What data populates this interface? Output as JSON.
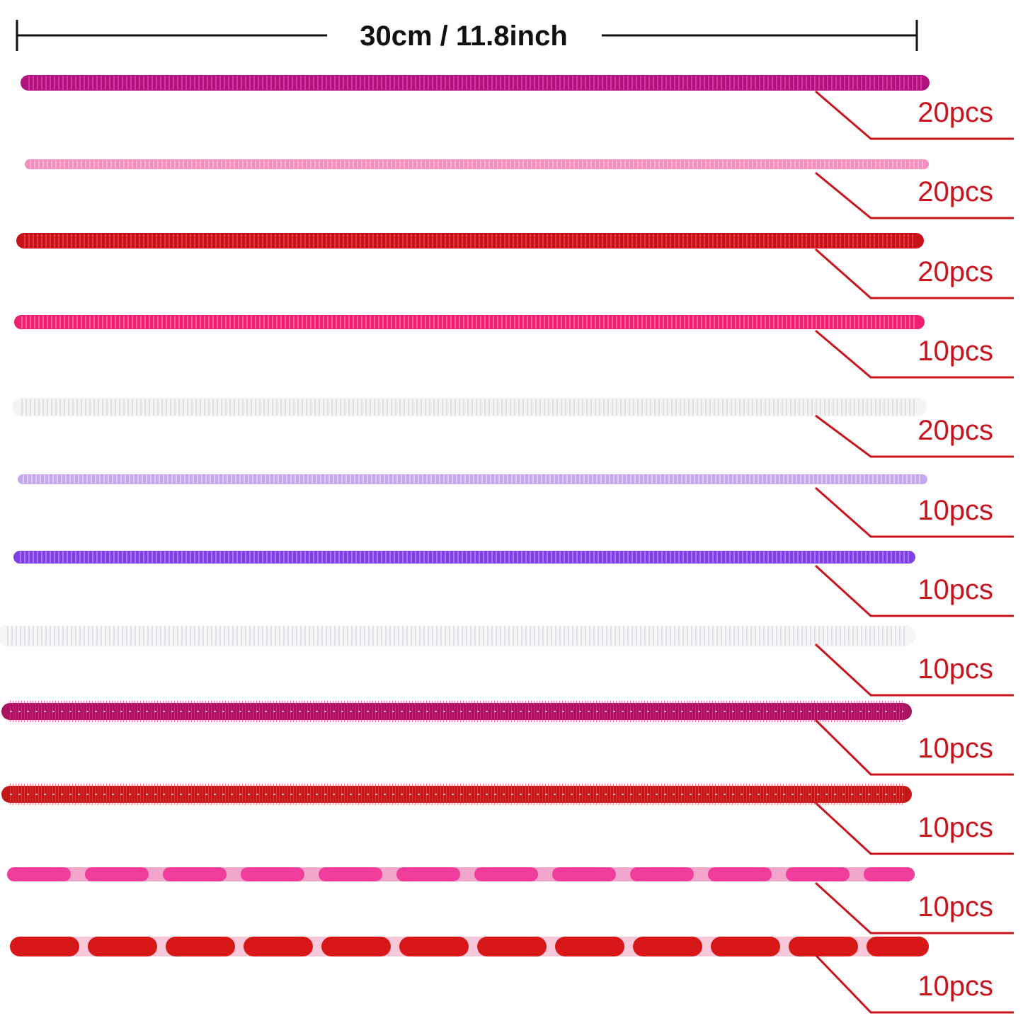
{
  "measure": "30cm / 11.8inch",
  "items": [
    {
      "label": "20pcs"
    },
    {
      "label": "20pcs"
    },
    {
      "label": "20pcs"
    },
    {
      "label": "10pcs"
    },
    {
      "label": "20pcs"
    },
    {
      "label": "10pcs"
    },
    {
      "label": "10pcs"
    },
    {
      "label": "10pcs"
    },
    {
      "label": "10pcs"
    },
    {
      "label": "10pcs"
    },
    {
      "label": "10pcs"
    },
    {
      "label": "10pcs"
    }
  ]
}
